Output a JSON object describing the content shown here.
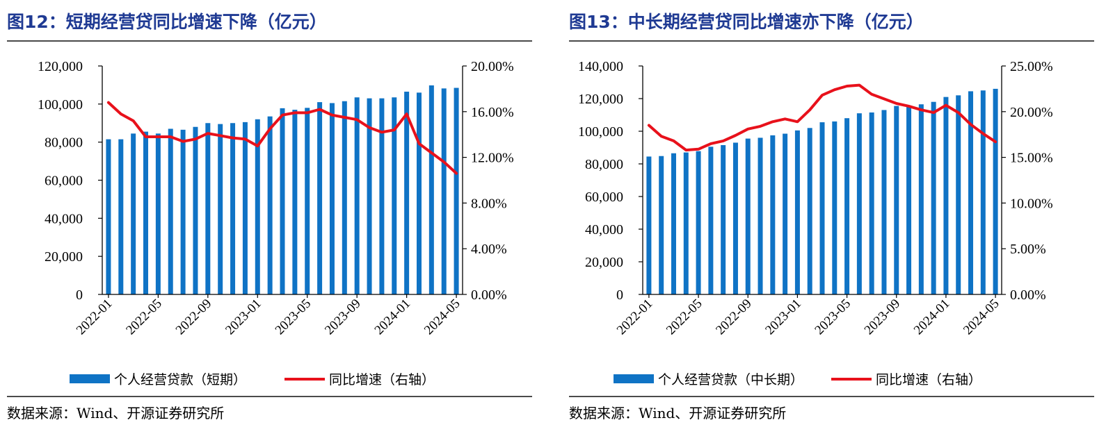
{
  "source_label": "数据来源：Wind、开源证券研究所",
  "colors": {
    "bar": "#0f73c5",
    "line": "#e8111b",
    "title": "#1f3a93"
  },
  "chart_data": [
    {
      "type": "bar",
      "title": "图12：短期经营贷同比增速下降（亿元）",
      "categories": [
        "2022-01",
        "2022-02",
        "2022-03",
        "2022-04",
        "2022-05",
        "2022-06",
        "2022-07",
        "2022-08",
        "2022-09",
        "2022-10",
        "2022-11",
        "2022-12",
        "2023-01",
        "2023-02",
        "2023-03",
        "2023-04",
        "2023-05",
        "2023-06",
        "2023-07",
        "2023-08",
        "2023-09",
        "2023-10",
        "2023-11",
        "2023-12",
        "2024-01",
        "2024-02",
        "2024-03",
        "2024-04",
        "2024-05"
      ],
      "x_tick_labels": [
        "2022-01",
        "2022-05",
        "2022-09",
        "2023-01",
        "2023-05",
        "2023-09",
        "2024-01",
        "2024-05"
      ],
      "series": [
        {
          "name": "个人经营贷款（短期）",
          "axis": "left",
          "type": "bar",
          "values": [
            81500,
            81500,
            84500,
            85500,
            84500,
            87000,
            86500,
            88000,
            90000,
            89500,
            90000,
            90500,
            92000,
            93500,
            97800,
            97000,
            98000,
            101000,
            100500,
            101500,
            103500,
            103000,
            103000,
            103500,
            106500,
            106000,
            109800,
            108200,
            108500
          ]
        },
        {
          "name": "同比增速（右轴）",
          "axis": "right",
          "type": "line",
          "values": [
            16.8,
            15.8,
            15.2,
            13.8,
            13.8,
            13.8,
            13.4,
            13.6,
            14.1,
            13.9,
            13.7,
            13.6,
            13.0,
            14.5,
            15.7,
            15.9,
            15.9,
            16.2,
            15.7,
            15.5,
            15.3,
            14.6,
            14.2,
            14.4,
            15.8,
            13.2,
            12.4,
            11.6,
            10.6
          ]
        }
      ],
      "ylim_left": [
        0,
        120000
      ],
      "y_ticks_left": [
        "0",
        "20,000",
        "40,000",
        "60,000",
        "80,000",
        "100,000",
        "120,000"
      ],
      "ylim_right": [
        0,
        20
      ],
      "y_ticks_right": [
        "0.00%",
        "4.00%",
        "8.00%",
        "12.00%",
        "16.00%",
        "20.00%"
      ],
      "legend": [
        "个人经营贷款（短期）",
        "同比增速（右轴）"
      ]
    },
    {
      "type": "bar",
      "title": "图13：中长期经营贷同比增速亦下降（亿元）",
      "categories": [
        "2022-01",
        "2022-02",
        "2022-03",
        "2022-04",
        "2022-05",
        "2022-06",
        "2022-07",
        "2022-08",
        "2022-09",
        "2022-10",
        "2022-11",
        "2022-12",
        "2023-01",
        "2023-02",
        "2023-03",
        "2023-04",
        "2023-05",
        "2023-06",
        "2023-07",
        "2023-08",
        "2023-09",
        "2023-10",
        "2023-11",
        "2023-12",
        "2024-01",
        "2024-02",
        "2024-03",
        "2024-04",
        "2024-05"
      ],
      "x_tick_labels": [
        "2022-01",
        "2022-05",
        "2022-09",
        "2023-01",
        "2023-05",
        "2023-09",
        "2024-01",
        "2024-05"
      ],
      "series": [
        {
          "name": "个人经营贷款（中长期）",
          "axis": "left",
          "type": "bar",
          "values": [
            84500,
            84800,
            86500,
            87000,
            87800,
            90500,
            91500,
            93000,
            95500,
            96000,
            97500,
            98500,
            100500,
            102000,
            105500,
            106000,
            108000,
            111000,
            111500,
            113000,
            115500,
            115000,
            116500,
            118000,
            121000,
            122000,
            124500,
            125000,
            126000
          ]
        },
        {
          "name": "同比增速（右轴）",
          "axis": "right",
          "type": "line",
          "values": [
            18.5,
            17.3,
            16.8,
            15.8,
            15.9,
            16.5,
            16.8,
            17.4,
            18.1,
            18.4,
            18.9,
            19.2,
            18.9,
            20.2,
            21.8,
            22.4,
            22.8,
            22.9,
            21.9,
            21.4,
            20.9,
            20.6,
            20.2,
            19.9,
            20.7,
            19.9,
            18.6,
            17.6,
            16.7
          ]
        }
      ],
      "ylim_left": [
        0,
        140000
      ],
      "y_ticks_left": [
        "0",
        "20,000",
        "40,000",
        "60,000",
        "80,000",
        "100,000",
        "120,000",
        "140,000"
      ],
      "ylim_right": [
        0,
        25
      ],
      "y_ticks_right": [
        "0.00%",
        "5.00%",
        "10.00%",
        "15.00%",
        "20.00%",
        "25.00%"
      ],
      "legend": [
        "个人经营贷款（中长期）",
        "同比增速（右轴）"
      ]
    }
  ]
}
